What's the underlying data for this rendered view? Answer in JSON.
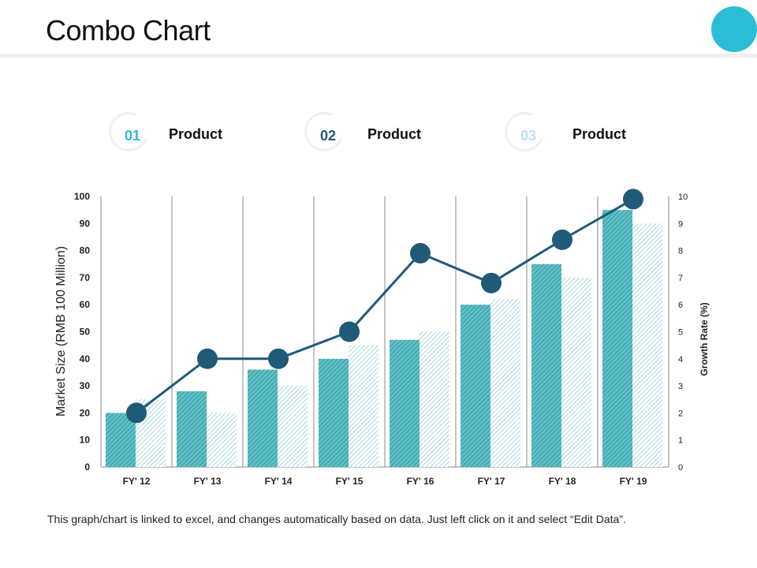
{
  "page": {
    "title": "Combo Chart",
    "footnote": "This graph/chart is linked to excel, and changes automatically based on data. Just left click on it and select “Edit Data”."
  },
  "legend": [
    {
      "number": "01",
      "label": "Product",
      "color": "#2bbcd8"
    },
    {
      "number": "02",
      "label": "Product",
      "color": "#1f5a78"
    },
    {
      "number": "03",
      "label": "Product",
      "color": "#bfe3ec"
    }
  ],
  "colors": {
    "accent": "#2bbcd8",
    "bar_dark": "#3aa9b2",
    "bar_light": "#a8d9df",
    "line": "#1f5a78"
  },
  "chart_data": {
    "type": "bar",
    "title": "",
    "categories": [
      "FY' 12",
      "FY' 13",
      "FY' 14",
      "FY' 15",
      "FY' 16",
      "FY' 17",
      "FY' 18",
      "FY' 19"
    ],
    "series": [
      {
        "name": "Product 01",
        "type": "bar",
        "axis": "left",
        "values": [
          20,
          28,
          36,
          40,
          47,
          60,
          75,
          95
        ]
      },
      {
        "name": "Product 03",
        "type": "bar",
        "axis": "left",
        "values": [
          25,
          20,
          30,
          45,
          50,
          62,
          70,
          90
        ]
      },
      {
        "name": "Product 02",
        "type": "line",
        "axis": "right",
        "values": [
          2,
          4,
          4,
          5,
          7.9,
          6.8,
          8.4,
          9.9
        ]
      }
    ],
    "ylabel": "Market Size (RMB 100 Million)",
    "y2label": "Growth Rate (%)",
    "ylim": [
      0,
      100
    ],
    "y2lim": [
      0,
      10
    ],
    "yticks": [
      0,
      10,
      20,
      30,
      40,
      50,
      60,
      70,
      80,
      90,
      100
    ],
    "y2ticks": [
      0,
      1,
      2,
      3,
      4,
      5,
      6,
      7,
      8,
      9,
      10
    ],
    "grid": "vertical separators between categories"
  }
}
